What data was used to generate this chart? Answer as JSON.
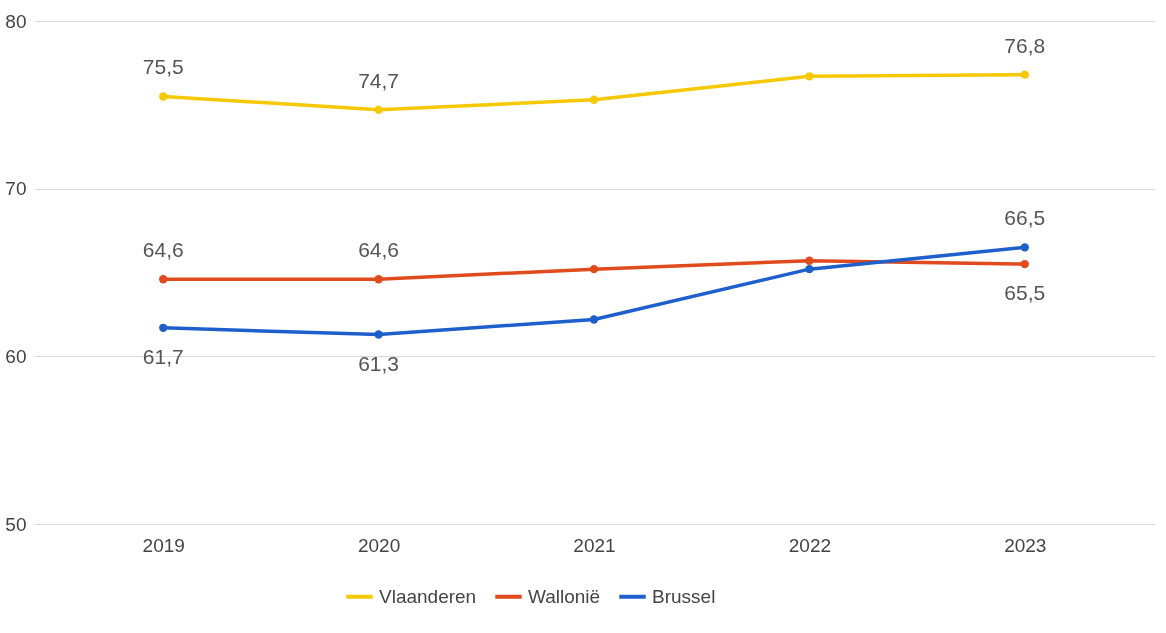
{
  "chart_data": {
    "type": "line",
    "categories": [
      "2019",
      "2020",
      "2021",
      "2022",
      "2023"
    ],
    "series": [
      {
        "name": "Vlaanderen",
        "color": "#f5c800",
        "values": [
          75.5,
          74.7,
          75.3,
          76.7,
          76.8
        ],
        "value_labels": [
          "75,5",
          "74,7",
          null,
          null,
          "76,8"
        ]
      },
      {
        "name": "Wallonië",
        "color": "#e04a1c",
        "values": [
          64.6,
          64.6,
          65.2,
          65.7,
          65.5
        ],
        "value_labels": [
          "64,6",
          "64,6",
          null,
          null,
          "65,5"
        ]
      },
      {
        "name": "Brussel",
        "color": "#1f5fcc",
        "values": [
          61.7,
          61.3,
          62.2,
          65.2,
          66.5
        ],
        "value_labels": [
          "61,7",
          "61,3",
          null,
          null,
          "66,5"
        ]
      }
    ],
    "ylim": [
      50,
      80
    ],
    "yticks": [
      50,
      60,
      70,
      80
    ],
    "grid": "y",
    "legend": "bottom",
    "marker": "circle",
    "line_style": "solid"
  }
}
